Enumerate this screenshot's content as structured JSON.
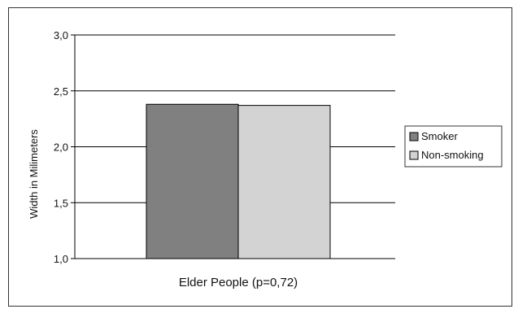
{
  "chart_data": {
    "type": "bar",
    "categories": [
      "Elder People (p=0,72)"
    ],
    "series": [
      {
        "name": "Smoker",
        "values": [
          2.38
        ],
        "color": "#808080"
      },
      {
        "name": "Non-smoking",
        "values": [
          2.37
        ],
        "color": "#d3d3d3"
      }
    ],
    "title": "",
    "xlabel": "Elder People (p=0,72)",
    "ylabel": "Width in Milimeters",
    "ylim": [
      1.0,
      3.0
    ],
    "yticks": [
      "1,0",
      "1,5",
      "2,0",
      "2,5",
      "3,0"
    ],
    "ytick_values": [
      1.0,
      1.5,
      2.0,
      2.5,
      3.0
    ],
    "grid": true,
    "legend": "right"
  }
}
